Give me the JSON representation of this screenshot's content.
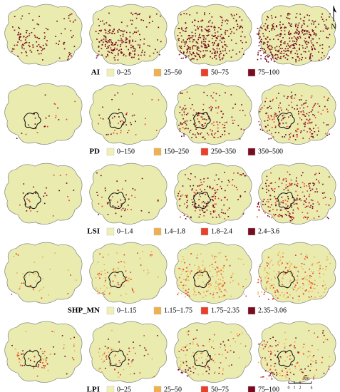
{
  "rows": [
    {
      "label": "AI",
      "legend": [
        "0–25",
        "25–50",
        "50–75",
        "75–100"
      ]
    },
    {
      "label": "PD",
      "legend": [
        "0–150",
        "150–250",
        "250–350",
        "350–500"
      ]
    },
    {
      "label": "LSI",
      "legend": [
        "0–1.4",
        "1.4–1.8",
        "1.8–2.4",
        "2.4–3.6"
      ]
    },
    {
      "label": "SHP_MN",
      "legend": [
        "0–1.15",
        "1.15–1.75",
        "1.75–2.35",
        "2.35–3.06"
      ]
    },
    {
      "label": "LPI",
      "legend": [
        "0–25",
        "25–50",
        "50–75",
        "75–100"
      ]
    }
  ],
  "north": "N",
  "scale_bar": {
    "unit": "km",
    "ticks": [
      "0",
      "1",
      "2",
      "4"
    ]
  }
}
